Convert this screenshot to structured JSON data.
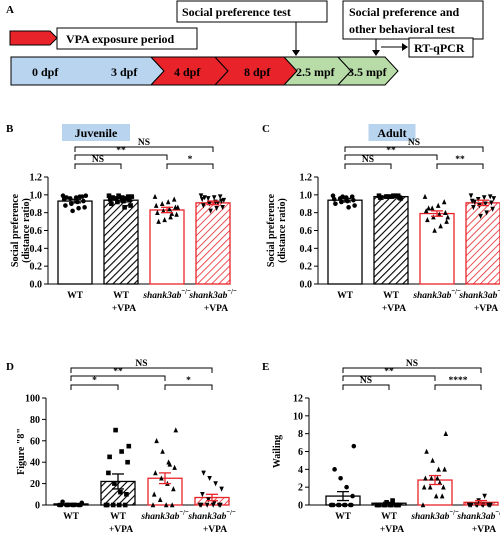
{
  "colors": {
    "red": "#e8242a",
    "blue_box": "#b8d4ee",
    "green_box": "#b8dca8",
    "title_fill": "#b8d4ee",
    "black": "#000000"
  },
  "panel_a": {
    "label": "A",
    "legend_text": "VPA exposure period",
    "timeline": [
      "0 dpf",
      "3 dpf",
      "4 dpf",
      "8 dpf",
      "2.5 mpf",
      "3.5 mpf"
    ],
    "boxes": {
      "social_test": "Social preference test",
      "social_other": [
        "Social preference and",
        "other behavioral test"
      ],
      "rtqpcr": "RT-qPCR"
    }
  },
  "chart_data": [
    {
      "panel": "B",
      "type": "bar",
      "title": "Juvenile",
      "ylabel": [
        "Social preference",
        "(distance ratio)"
      ],
      "ylim": [
        0,
        1.2
      ],
      "yticks": [
        "0.0",
        "0.2",
        "0.4",
        "0.6",
        "0.8",
        "1.0",
        "1.2"
      ],
      "categories": [
        [
          "WT",
          ""
        ],
        [
          "WT",
          "+VPA"
        ],
        [
          "shank3ab⁻/⁻",
          ""
        ],
        [
          "shank3ab⁻/⁻",
          "+VPA"
        ]
      ],
      "values": [
        0.93,
        0.94,
        0.83,
        0.91
      ],
      "errors": [
        0.02,
        0.02,
        0.03,
        0.02
      ],
      "points": [
        [
          0.99,
          0.98,
          0.97,
          0.96,
          0.95,
          0.93,
          0.92,
          0.9,
          0.88,
          0.86,
          0.85,
          0.82,
          0.97,
          0.99,
          0.98
        ],
        [
          0.99,
          0.98,
          0.97,
          0.96,
          0.95,
          0.94,
          0.93,
          0.92,
          0.9,
          0.88,
          0.86,
          0.99,
          0.97,
          0.98,
          0.96
        ],
        [
          0.98,
          0.95,
          0.92,
          0.9,
          0.88,
          0.86,
          0.84,
          0.82,
          0.8,
          0.78,
          0.75,
          0.72,
          0.7,
          0.86,
          0.79
        ],
        [
          0.99,
          0.98,
          0.97,
          0.96,
          0.95,
          0.93,
          0.92,
          0.9,
          0.88,
          0.86,
          0.85,
          0.82,
          0.97,
          0.94,
          0.91
        ]
      ],
      "comparisons": [
        {
          "from": 1,
          "to": 2,
          "label": "NS"
        },
        {
          "from": 1,
          "to": 3,
          "label": "**"
        },
        {
          "from": 1,
          "to": 4,
          "label": "NS"
        },
        {
          "from": 3,
          "to": 4,
          "label": "*"
        }
      ]
    },
    {
      "panel": "C",
      "type": "bar",
      "title": "Adult",
      "ylabel": [
        "Social preference",
        "(distance ratio)"
      ],
      "ylim": [
        0,
        1.2
      ],
      "yticks": [
        "0.0",
        "0.2",
        "0.4",
        "0.6",
        "0.8",
        "1.0",
        "1.2"
      ],
      "categories": [
        [
          "WT",
          ""
        ],
        [
          "WT",
          "+VPA"
        ],
        [
          "shank3ab⁻/⁻",
          ""
        ],
        [
          "shank3ab⁻/⁻",
          "+VPA"
        ]
      ],
      "values": [
        0.94,
        0.98,
        0.79,
        0.91
      ],
      "errors": [
        0.02,
        0.01,
        0.03,
        0.03
      ],
      "points": [
        [
          0.99,
          0.98,
          0.97,
          0.96,
          0.95,
          0.94,
          0.93,
          0.92,
          0.9,
          0.88,
          0.86,
          0.98
        ],
        [
          0.99,
          0.99,
          0.98,
          0.98,
          0.97,
          0.97,
          0.99,
          0.98,
          0.97,
          0.96,
          0.99,
          0.98
        ],
        [
          0.98,
          0.92,
          0.88,
          0.85,
          0.82,
          0.8,
          0.78,
          0.75,
          0.72,
          0.7,
          0.65,
          0.6,
          0.85,
          0.75
        ],
        [
          0.99,
          0.98,
          0.97,
          0.95,
          0.93,
          0.91,
          0.9,
          0.88,
          0.86,
          0.84,
          0.8,
          0.76,
          0.92,
          0.96
        ]
      ],
      "comparisons": [
        {
          "from": 1,
          "to": 2,
          "label": "NS"
        },
        {
          "from": 1,
          "to": 3,
          "label": "**"
        },
        {
          "from": 1,
          "to": 4,
          "label": "NS"
        },
        {
          "from": 3,
          "to": 4,
          "label": "**"
        }
      ]
    },
    {
      "panel": "D",
      "type": "bar",
      "title": "",
      "ylabel": [
        "Figure \"8\""
      ],
      "ylim": [
        0,
        100
      ],
      "yticks": [
        "0",
        "20",
        "40",
        "60",
        "80",
        "100"
      ],
      "categories": [
        [
          "WT",
          ""
        ],
        [
          "WT",
          "+VPA"
        ],
        [
          "shank3ab⁻/⁻",
          ""
        ],
        [
          "shank3ab⁻/⁻",
          "+VPA"
        ]
      ],
      "values": [
        1,
        22,
        25,
        7
      ],
      "errors": [
        0.6,
        7,
        5,
        3
      ],
      "points": [
        [
          0,
          0,
          0,
          0,
          0,
          0,
          0,
          0,
          0,
          0,
          0,
          0,
          3,
          2
        ],
        [
          0,
          0,
          0,
          0,
          0,
          10,
          12,
          20,
          30,
          40,
          50,
          70,
          45,
          55
        ],
        [
          0,
          0,
          0,
          5,
          10,
          15,
          20,
          25,
          30,
          35,
          40,
          50,
          60,
          70,
          38
        ],
        [
          0,
          0,
          0,
          0,
          0,
          0,
          2,
          5,
          10,
          15,
          20,
          25,
          30
        ]
      ],
      "comparisons": [
        {
          "from": 1,
          "to": 2,
          "label": "*"
        },
        {
          "from": 1,
          "to": 3,
          "label": "**"
        },
        {
          "from": 1,
          "to": 4,
          "label": "NS"
        },
        {
          "from": 3,
          "to": 4,
          "label": "*"
        }
      ]
    },
    {
      "panel": "E",
      "type": "bar",
      "title": "",
      "ylabel": [
        "Wailing"
      ],
      "ylim": [
        0,
        12
      ],
      "yticks": [
        "0",
        "2",
        "4",
        "6",
        "8",
        "10",
        "12"
      ],
      "categories": [
        [
          "WT",
          ""
        ],
        [
          "WT",
          "+VPA"
        ],
        [
          "shank3ab⁻/⁻",
          ""
        ],
        [
          "shank3ab⁻/⁻",
          "+VPA"
        ]
      ],
      "values": [
        1.0,
        0.2,
        2.8,
        0.3
      ],
      "errors": [
        0.5,
        0.1,
        0.5,
        0.2
      ],
      "points": [
        [
          0,
          0,
          0,
          0,
          0,
          0,
          0,
          0,
          0,
          1,
          2,
          3,
          4,
          6.6
        ],
        [
          0,
          0,
          0,
          0,
          0,
          0,
          0,
          0,
          0,
          0,
          0.5,
          0.3
        ],
        [
          0,
          1,
          1,
          2,
          2,
          2,
          3,
          3,
          3,
          4,
          4,
          5,
          6,
          8,
          2.5
        ],
        [
          0,
          0,
          0,
          0,
          0,
          0,
          0,
          0,
          0,
          0,
          1,
          0.5
        ]
      ],
      "comparisons": [
        {
          "from": 1,
          "to": 2,
          "label": "NS"
        },
        {
          "from": 1,
          "to": 3,
          "label": "**"
        },
        {
          "from": 1,
          "to": 4,
          "label": "NS"
        },
        {
          "from": 3,
          "to": 4,
          "label": "****"
        }
      ]
    }
  ]
}
